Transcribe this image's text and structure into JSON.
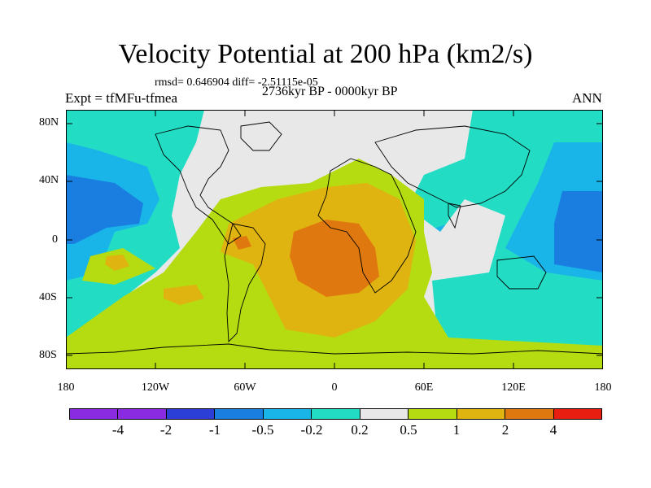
{
  "title": "Velocity Potential at 200 hPa (km2/s)",
  "stats": "rmsd= 0.646904 diff= -2.51115e-05",
  "experiment": "Expt = tfMFu-tfmea",
  "period": "2736kyr BP - 0000kyr BP",
  "season": "ANN",
  "lat_labels": [
    "80N",
    "40N",
    "0",
    "40S",
    "80S"
  ],
  "lon_labels": [
    "180",
    "120W",
    "60W",
    "0",
    "60E",
    "120E",
    "180"
  ],
  "colorbar": {
    "labels": [
      "-4",
      "-2",
      "-1",
      "-0.5",
      "-0.2",
      "0.2",
      "0.5",
      "1",
      "2",
      "4"
    ],
    "colors": [
      "#8a2be2",
      "#2b3fd6",
      "#1a7ee0",
      "#19b4e8",
      "#23dcc4",
      "#e8e8e8",
      "#b4dc10",
      "#e0b410",
      "#e07810",
      "#e81e10"
    ]
  },
  "colors": {
    "land_outline": "#000000",
    "ocean_neutral": "#e8e8e8"
  }
}
